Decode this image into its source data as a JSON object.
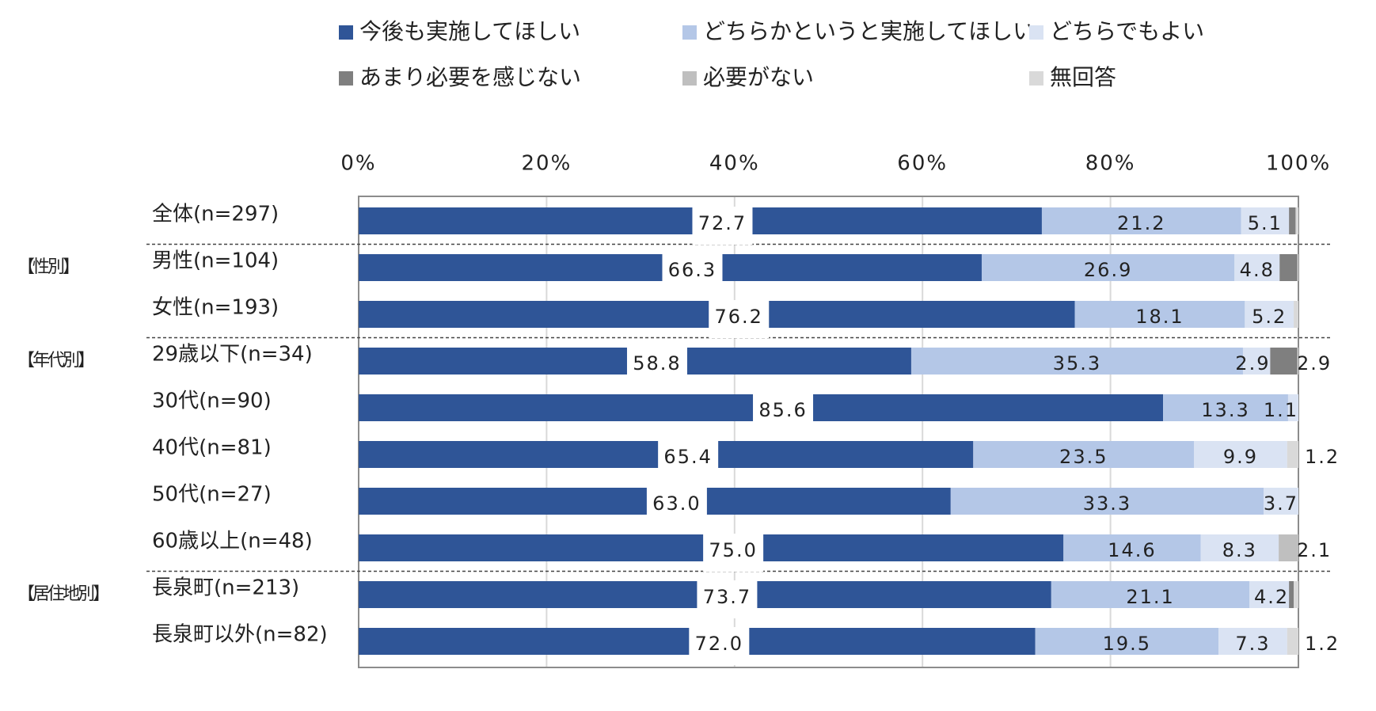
{
  "chart_data": {
    "type": "bar",
    "orientation": "horizontal",
    "stacked": true,
    "percent_axis": true,
    "xlim": [
      0,
      100
    ],
    "x_ticks": [
      "0%",
      "20%",
      "40%",
      "60%",
      "80%",
      "100%"
    ],
    "grid": true,
    "legend_position": "top",
    "legend": [
      {
        "name": "今後も実施してほしい",
        "color": "#2f5597"
      },
      {
        "name": "どちらかというと実施してほしい",
        "color": "#b4c7e7"
      },
      {
        "name": "どちらでもよい",
        "color": "#dae3f3"
      },
      {
        "name": "あまり必要を感じない",
        "color": "#7f7f7f"
      },
      {
        "name": "必要がない",
        "color": "#bfbfbf"
      },
      {
        "name": "無回答",
        "color": "#d9d9d9"
      }
    ],
    "groups": [
      {
        "label": "【性別】",
        "row_start": 1
      },
      {
        "label": "【年代別】",
        "row_start": 3
      },
      {
        "label": "【居住地別】",
        "row_start": 8
      }
    ],
    "rows": [
      {
        "label": "全体(n=297)",
        "values": [
          72.7,
          21.2,
          5.1,
          0.7,
          0.0,
          0.3
        ],
        "labels": [
          "72.7",
          "21.2",
          "5.1",
          "",
          "",
          ""
        ]
      },
      {
        "label": "男性(n=104)",
        "values": [
          66.3,
          26.9,
          4.8,
          1.9,
          0.0,
          0.1
        ],
        "labels": [
          "66.3",
          "26.9",
          "4.8",
          "",
          "",
          ""
        ]
      },
      {
        "label": "女性(n=193)",
        "values": [
          76.2,
          18.1,
          5.2,
          0.0,
          0.0,
          0.5
        ],
        "labels": [
          "76.2",
          "18.1",
          "5.2",
          "",
          "",
          ""
        ]
      },
      {
        "label": "29歳以下(n=34)",
        "values": [
          58.8,
          35.3,
          2.9,
          2.9,
          0.0,
          0.1
        ],
        "labels": [
          "58.8",
          "35.3",
          "2.9",
          "2.9",
          "",
          ""
        ]
      },
      {
        "label": "30代(n=90)",
        "values": [
          85.6,
          13.3,
          1.1,
          0.0,
          0.0,
          0.0
        ],
        "labels": [
          "85.6",
          "13.3",
          "1.1",
          "",
          "",
          ""
        ]
      },
      {
        "label": "40代(n=81)",
        "values": [
          65.4,
          23.5,
          9.9,
          0.0,
          0.0,
          1.2
        ],
        "labels": [
          "65.4",
          "23.5",
          "9.9",
          "",
          "",
          "1.2"
        ]
      },
      {
        "label": "50代(n=27)",
        "values": [
          63.0,
          33.3,
          3.7,
          0.0,
          0.0,
          0.0
        ],
        "labels": [
          "63.0",
          "33.3",
          "3.7",
          "",
          "",
          ""
        ]
      },
      {
        "label": "60歳以上(n=48)",
        "values": [
          75.0,
          14.6,
          8.3,
          0.0,
          2.1,
          0.0
        ],
        "labels": [
          "75.0",
          "14.6",
          "8.3",
          "",
          "2.1",
          ""
        ]
      },
      {
        "label": "長泉町(n=213)",
        "values": [
          73.7,
          21.1,
          4.2,
          0.5,
          0.0,
          0.5
        ],
        "labels": [
          "73.7",
          "21.1",
          "4.2",
          "",
          "",
          ""
        ]
      },
      {
        "label": "長泉町以外(n=82)",
        "values": [
          72.0,
          19.5,
          7.3,
          0.0,
          0.0,
          1.2
        ],
        "labels": [
          "72.0",
          "19.5",
          "7.3",
          "",
          "",
          "1.2"
        ]
      }
    ],
    "dividers_after_rows": [
      0,
      2,
      7
    ]
  }
}
